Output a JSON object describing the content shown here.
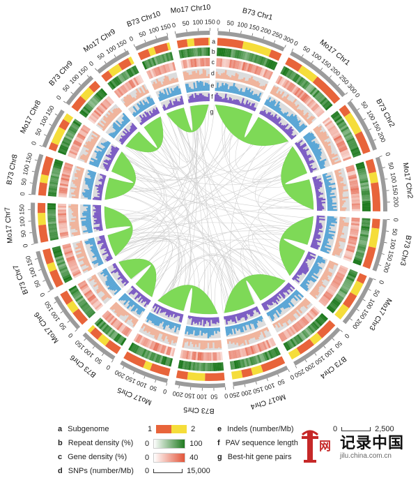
{
  "chromosomes": [
    {
      "label": "B73 Chr1",
      "length": 300
    },
    {
      "label": "Mo17 Chr1",
      "length": 300
    },
    {
      "label": "B73 Chr2",
      "length": 240
    },
    {
      "label": "Mo17 Chr2",
      "length": 240
    },
    {
      "label": "B73 Chr3",
      "length": 230
    },
    {
      "label": "Mo17 Chr3",
      "length": 230
    },
    {
      "label": "B73 Chr4",
      "length": 250
    },
    {
      "label": "Mo17 Chr4",
      "length": 250
    },
    {
      "label": "B73 Chr5",
      "length": 220
    },
    {
      "label": "Mo17 Chr5",
      "length": 220
    },
    {
      "label": "B73 Chr6",
      "length": 170
    },
    {
      "label": "Mo17 Chr6",
      "length": 170
    },
    {
      "label": "B73 Chr7",
      "length": 180
    },
    {
      "label": "Mo17 Chr7",
      "length": 180
    },
    {
      "label": "B73 Chr8",
      "length": 180
    },
    {
      "label": "Mo17 Chr8",
      "length": 180
    },
    {
      "label": "B73 Chr9",
      "length": 160
    },
    {
      "label": "Mo17 Chr9",
      "length": 160
    },
    {
      "label": "B73 Chr10",
      "length": 150
    },
    {
      "label": "Mo17 Chr10",
      "length": 150
    }
  ],
  "track_letters": [
    "a",
    "b",
    "c",
    "d",
    "e",
    "f",
    "g"
  ],
  "colors": {
    "subgenome1": "#e8643a",
    "subgenome2": "#f5dd3a",
    "repeat_low": "#ffffff",
    "repeat_high": "#1f7a1f",
    "gene_low": "#ffffff",
    "gene_high": "#e2553a",
    "snp": "#f0b49c",
    "indel": "#5aa6d6",
    "pav": "#7c5cc4",
    "ring_bg": "#dcdcdc",
    "links": "#7ed957",
    "outer_ring": "#9b9b9b"
  },
  "legend": {
    "a": {
      "letter": "a",
      "text": "Subgenome",
      "v1": "1",
      "v2": "2"
    },
    "b": {
      "letter": "b",
      "text": "Repeat density (%)",
      "min": "0",
      "max": "100"
    },
    "c": {
      "letter": "c",
      "text": "Gene density (%)",
      "min": "0",
      "max": "40"
    },
    "d": {
      "letter": "d",
      "text": "SNPs (number/Mb)",
      "min": "0",
      "max": "15,000"
    },
    "e": {
      "letter": "e",
      "text": "Indels (number/Mb)",
      "min": "0",
      "max": "2,500"
    },
    "f": {
      "letter": "f",
      "text": "PAV sequence length"
    },
    "g": {
      "letter": "g",
      "text": "Best-hit gene pairs"
    }
  },
  "watermark": {
    "title": "记录中国",
    "net": "网",
    "url": "jilu.china.com.cn"
  }
}
